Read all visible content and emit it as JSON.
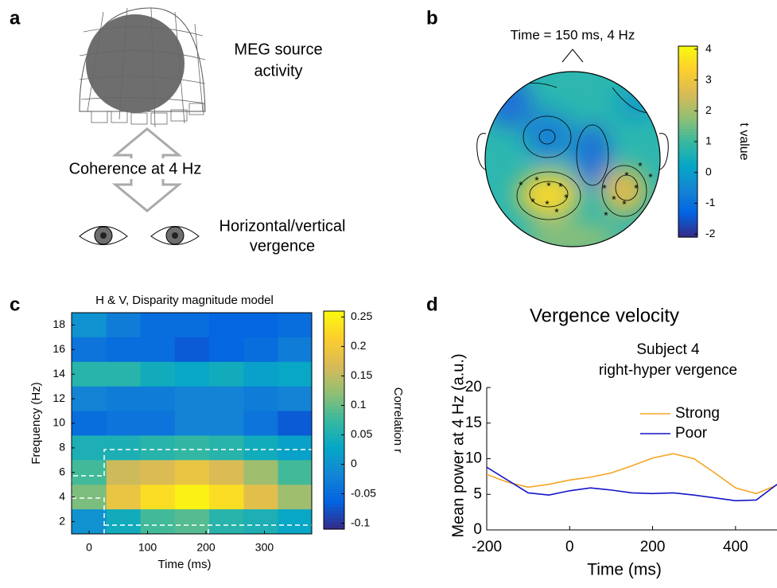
{
  "panel_labels": [
    "a",
    "b",
    "c",
    "d"
  ],
  "diagram": {
    "meg_label": [
      "MEG source",
      "activity"
    ],
    "coherence_label": "Coherence at 4 Hz",
    "vergence_label": [
      "Horizontal/vertical",
      "vergence"
    ]
  },
  "chart_data": [
    {
      "type": "topomap",
      "title": "Time = 150 ms, 4 Hz",
      "colorbar_label": "t value",
      "clim": [
        -2.1,
        4.1
      ],
      "cticks": [
        4,
        3,
        2,
        1,
        0,
        -1,
        -2
      ]
    },
    {
      "type": "heatmap",
      "title": "H & V, Disparity magnitude model",
      "xlabel": "Time (ms)",
      "ylabel": "Frequency (Hz)",
      "x": [
        0,
        59,
        117,
        176,
        235,
        294,
        352
      ],
      "y": [
        18,
        16,
        14,
        12,
        10,
        8,
        6,
        4,
        2
      ],
      "values": [
        [
          0.0,
          -0.03,
          -0.05,
          -0.05,
          -0.06,
          -0.06,
          -0.05
        ],
        [
          -0.04,
          -0.05,
          -0.05,
          -0.07,
          -0.06,
          -0.05,
          -0.03
        ],
        [
          0.06,
          0.06,
          0.04,
          0.03,
          0.04,
          0.02,
          0.03
        ],
        [
          -0.02,
          -0.03,
          -0.03,
          -0.02,
          -0.02,
          -0.03,
          -0.02
        ],
        [
          -0.05,
          -0.04,
          -0.04,
          -0.02,
          -0.02,
          -0.04,
          -0.07
        ],
        [
          0.05,
          0.05,
          0.06,
          0.07,
          0.06,
          0.04,
          0.02
        ],
        [
          0.08,
          0.16,
          0.17,
          0.19,
          0.17,
          0.13,
          0.08
        ],
        [
          0.11,
          0.19,
          0.23,
          0.25,
          0.23,
          0.18,
          0.13
        ],
        [
          0.0,
          0.04,
          0.08,
          0.09,
          0.06,
          0.05,
          0.03
        ]
      ],
      "xlim": [
        -30,
        381
      ],
      "ylim": [
        1,
        19
      ],
      "xticks": [
        0,
        100,
        200,
        300
      ],
      "yticks": [
        2,
        4,
        6,
        8,
        10,
        12,
        14,
        16,
        18
      ],
      "colorbar_label": "Correlation r",
      "clim": [
        -0.11,
        0.26
      ],
      "cticks": [
        0.25,
        0.2,
        0.15,
        0.1,
        0.05,
        0,
        -0.05,
        -0.1
      ]
    },
    {
      "type": "line",
      "title": "Vergence velocity",
      "subtitle": [
        "Subject 4",
        "right-hyper vergence"
      ],
      "xlabel": "Time (ms)",
      "ylabel": "Mean power at 4 Hz (a.u.)",
      "x": [
        -200,
        -150,
        -100,
        -50,
        0,
        50,
        100,
        150,
        200,
        250,
        300,
        350,
        400,
        450,
        500
      ],
      "series": [
        {
          "name": "Strong",
          "color": "#f5a623",
          "values": [
            7.8,
            6.7,
            6.0,
            6.4,
            7.0,
            7.4,
            8.0,
            9.0,
            10.1,
            10.7,
            10.0,
            8.0,
            5.9,
            5.1,
            6.3
          ]
        },
        {
          "name": "Poor",
          "color": "#1515c8",
          "values": [
            8.8,
            7.0,
            5.2,
            4.9,
            5.5,
            5.9,
            5.6,
            5.2,
            5.1,
            5.2,
            4.9,
            4.5,
            4.1,
            4.2,
            6.4
          ]
        }
      ],
      "xlim": [
        -200,
        500
      ],
      "ylim": [
        0,
        20
      ],
      "xticks": [
        -200,
        0,
        200,
        400
      ],
      "yticks": [
        0,
        5,
        10,
        15,
        20
      ]
    }
  ]
}
